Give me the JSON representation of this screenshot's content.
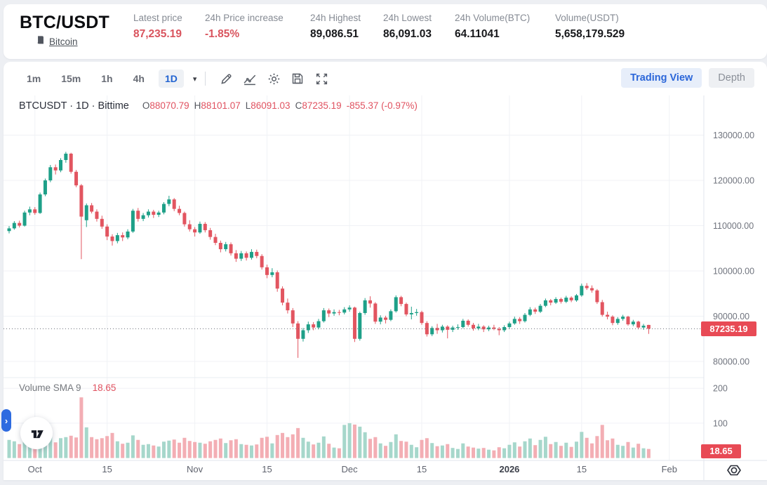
{
  "header": {
    "pair": "BTC/USDT",
    "pair_link": "Bitcoin",
    "stats": [
      {
        "label": "Latest price",
        "value": "87,235.19",
        "red": true
      },
      {
        "label": "24h Price increase",
        "value": "-1.85%",
        "red": true
      },
      {
        "label": "24h Highest",
        "value": "89,086.51",
        "red": false
      },
      {
        "label": "24h Lowest",
        "value": "86,091.03",
        "red": false
      },
      {
        "label": "24h Volume(BTC)",
        "value": "64.11041",
        "red": false
      },
      {
        "label": "Volume(USDT)",
        "value": "5,658,179.529",
        "red": false
      }
    ]
  },
  "toolbar": {
    "intervals": [
      "1m",
      "15m",
      "1h",
      "4h",
      "1D"
    ],
    "selected_interval": "1D",
    "caret": "▾",
    "icons": [
      "pencil",
      "line-chart",
      "gear",
      "save",
      "fullscreen"
    ],
    "tabs": {
      "trading_view": "Trading View",
      "depth": "Depth"
    },
    "selected_tab": "Trading View"
  },
  "chart_data": {
    "type": "candlestick",
    "symbol": "BTCUSDT",
    "interval": "1D",
    "exchange": "Bittime",
    "legend": {
      "title": "BTCUSDT · 1D · Bittime",
      "o_label": "O",
      "o": "88070.79",
      "h_label": "H",
      "h": "88101.07",
      "l_label": "L",
      "l": "86091.03",
      "c_label": "C",
      "c": "87235.19",
      "change": "-855.37 (-0.97%)"
    },
    "volume_legend": {
      "label": "Volume SMA 9",
      "value": "18.65"
    },
    "last_price": 87235.19,
    "last_price_label": "87235.19",
    "volume_sma": 18.65,
    "volume_sma_label": "18.65",
    "price_ticks": [
      {
        "label": "130000.00",
        "value": 130000
      },
      {
        "label": "120000.00",
        "value": 120000
      },
      {
        "label": "110000.00",
        "value": 110000
      },
      {
        "label": "100000.00",
        "value": 100000
      },
      {
        "label": "90000.00",
        "value": 90000
      },
      {
        "label": "80000.00",
        "value": 80000
      }
    ],
    "volume_ticks": [
      {
        "label": "200",
        "value": 200
      },
      {
        "label": "100",
        "value": 100
      }
    ],
    "time_ticks": [
      {
        "label": "Oct",
        "i": 5,
        "bold": false
      },
      {
        "label": "15",
        "i": 19,
        "bold": false
      },
      {
        "label": "Nov",
        "i": 36,
        "bold": false
      },
      {
        "label": "15",
        "i": 50,
        "bold": false
      },
      {
        "label": "Dec",
        "i": 66,
        "bold": false
      },
      {
        "label": "15",
        "i": 80,
        "bold": false
      },
      {
        "label": "2026",
        "i": 97,
        "bold": true
      },
      {
        "label": "15",
        "i": 111,
        "bold": false
      },
      {
        "label": "Feb",
        "i": 128,
        "bold": false
      }
    ],
    "colors": {
      "up": "#1ea088",
      "down": "#e25560",
      "vol_up": "#a6d7cb",
      "vol_down": "#f3aeb4",
      "label_bg": "#e84a55",
      "grid": "#f0f2f6",
      "axis_text": "#70747e"
    },
    "candles": [
      [
        108800,
        109900,
        108300,
        109400,
        52
      ],
      [
        109400,
        111000,
        109100,
        110600,
        48
      ],
      [
        110600,
        111100,
        109600,
        110000,
        40
      ],
      [
        110000,
        113300,
        109800,
        112900,
        55
      ],
      [
        112900,
        114200,
        112300,
        113600,
        50
      ],
      [
        113600,
        114100,
        112400,
        112800,
        42
      ],
      [
        112800,
        117300,
        112600,
        116900,
        58
      ],
      [
        116900,
        120400,
        116500,
        120000,
        62
      ],
      [
        120000,
        123400,
        119600,
        122900,
        66
      ],
      [
        122900,
        123500,
        121300,
        122200,
        45
      ],
      [
        122200,
        124900,
        121800,
        124500,
        57
      ],
      [
        124500,
        126300,
        123900,
        125900,
        60
      ],
      [
        125900,
        126100,
        121500,
        121900,
        64
      ],
      [
        121900,
        122300,
        118500,
        118900,
        59
      ],
      [
        118900,
        119200,
        102600,
        112000,
        174
      ],
      [
        111200,
        114900,
        109700,
        114500,
        88
      ],
      [
        114500,
        115000,
        112700,
        113100,
        60
      ],
      [
        113100,
        113600,
        110900,
        111500,
        54
      ],
      [
        111500,
        112200,
        109300,
        109800,
        57
      ],
      [
        109800,
        110300,
        106800,
        107600,
        63
      ],
      [
        107600,
        108100,
        105600,
        106600,
        72
      ],
      [
        106600,
        108400,
        106100,
        107900,
        48
      ],
      [
        107900,
        108500,
        106600,
        107400,
        41
      ],
      [
        107400,
        109200,
        107000,
        108700,
        44
      ],
      [
        108700,
        113700,
        108400,
        113300,
        65
      ],
      [
        113300,
        113900,
        110900,
        111500,
        52
      ],
      [
        111500,
        112800,
        111000,
        112300,
        38
      ],
      [
        112300,
        113600,
        111800,
        113100,
        40
      ],
      [
        113100,
        113500,
        111700,
        112400,
        36
      ],
      [
        112400,
        113300,
        111900,
        112900,
        33
      ],
      [
        112900,
        115200,
        112500,
        114800,
        47
      ],
      [
        114800,
        116600,
        114300,
        115800,
        50
      ],
      [
        115800,
        116100,
        113200,
        113700,
        53
      ],
      [
        113700,
        114400,
        112300,
        112800,
        44
      ],
      [
        112800,
        113100,
        109800,
        110300,
        58
      ],
      [
        110300,
        111200,
        108700,
        109200,
        49
      ],
      [
        109200,
        109700,
        107600,
        108500,
        46
      ],
      [
        108500,
        110900,
        108200,
        110400,
        44
      ],
      [
        110400,
        110800,
        108500,
        109000,
        41
      ],
      [
        109000,
        109500,
        106900,
        107500,
        48
      ],
      [
        107500,
        108200,
        105700,
        106200,
        52
      ],
      [
        106200,
        106700,
        104100,
        104800,
        56
      ],
      [
        104800,
        106400,
        104300,
        105900,
        43
      ],
      [
        105900,
        106300,
        103400,
        103900,
        51
      ],
      [
        103900,
        104600,
        102000,
        102700,
        54
      ],
      [
        102700,
        104400,
        102200,
        103900,
        40
      ],
      [
        103900,
        104300,
        102300,
        102900,
        38
      ],
      [
        102900,
        104800,
        102500,
        104200,
        36
      ],
      [
        104200,
        104700,
        102800,
        103300,
        39
      ],
      [
        103300,
        103700,
        100300,
        100800,
        58
      ],
      [
        100800,
        101400,
        98400,
        99100,
        61
      ],
      [
        99100,
        100600,
        98600,
        99700,
        42
      ],
      [
        99700,
        100100,
        95400,
        96100,
        66
      ],
      [
        96100,
        96600,
        92400,
        93000,
        72
      ],
      [
        93000,
        93900,
        90600,
        91300,
        60
      ],
      [
        91300,
        91800,
        87600,
        88400,
        68
      ],
      [
        88400,
        88900,
        80800,
        85000,
        86
      ],
      [
        85000,
        87400,
        84400,
        86900,
        58
      ],
      [
        86900,
        88800,
        86300,
        88200,
        47
      ],
      [
        88200,
        88700,
        86900,
        87500,
        39
      ],
      [
        87500,
        89400,
        87100,
        88900,
        44
      ],
      [
        88900,
        91800,
        88600,
        91300,
        62
      ],
      [
        91300,
        91700,
        89800,
        90600,
        41
      ],
      [
        90600,
        91500,
        90100,
        90900,
        30
      ],
      [
        90900,
        91400,
        90200,
        90800,
        28
      ],
      [
        90800,
        92000,
        90400,
        91500,
        95
      ],
      [
        91500,
        92400,
        91000,
        91900,
        100
      ],
      [
        91900,
        92100,
        84300,
        85000,
        96
      ],
      [
        85000,
        91000,
        84600,
        90700,
        90
      ],
      [
        90700,
        94000,
        90300,
        93500,
        74
      ],
      [
        93500,
        94400,
        91900,
        92800,
        55
      ],
      [
        92800,
        93100,
        88300,
        88800,
        60
      ],
      [
        88800,
        90200,
        88200,
        89700,
        42
      ],
      [
        89700,
        90100,
        88400,
        89200,
        35
      ],
      [
        89200,
        91500,
        88900,
        91100,
        46
      ],
      [
        91100,
        94600,
        90800,
        94200,
        68
      ],
      [
        94200,
        94500,
        92200,
        92700,
        49
      ],
      [
        92700,
        93000,
        90000,
        90400,
        47
      ],
      [
        90400,
        92100,
        89300,
        90700,
        38
      ],
      [
        90700,
        91600,
        90100,
        90900,
        31
      ],
      [
        90900,
        91200,
        88100,
        88500,
        52
      ],
      [
        88500,
        88900,
        85500,
        86000,
        57
      ],
      [
        86000,
        87800,
        85600,
        87400,
        43
      ],
      [
        87400,
        88300,
        86100,
        86900,
        34
      ],
      [
        86900,
        88100,
        86400,
        87700,
        36
      ],
      [
        87700,
        88000,
        85100,
        87000,
        40
      ],
      [
        87000,
        87900,
        86500,
        87500,
        29
      ],
      [
        87500,
        88200,
        87000,
        87600,
        26
      ],
      [
        87600,
        89400,
        87300,
        89000,
        42
      ],
      [
        89000,
        89300,
        87700,
        88100,
        33
      ],
      [
        88100,
        88500,
        86800,
        87300,
        30
      ],
      [
        87300,
        88300,
        86900,
        87700,
        27
      ],
      [
        87700,
        88000,
        86500,
        87100,
        29
      ],
      [
        87100,
        87900,
        86700,
        87500,
        24
      ],
      [
        87500,
        88100,
        86900,
        87200,
        22
      ],
      [
        87200,
        87600,
        85800,
        86900,
        31
      ],
      [
        86900,
        88000,
        86500,
        87600,
        28
      ],
      [
        87600,
        88800,
        87200,
        88400,
        38
      ],
      [
        88400,
        89900,
        88100,
        89400,
        45
      ],
      [
        89400,
        89800,
        88300,
        88900,
        33
      ],
      [
        88900,
        90700,
        88600,
        90300,
        48
      ],
      [
        90300,
        92000,
        90000,
        91500,
        56
      ],
      [
        91500,
        91900,
        90500,
        91000,
        37
      ],
      [
        91000,
        92700,
        90700,
        92300,
        52
      ],
      [
        92300,
        93900,
        92000,
        93500,
        61
      ],
      [
        93500,
        93800,
        92400,
        93000,
        40
      ],
      [
        93000,
        94200,
        92700,
        93800,
        46
      ],
      [
        93800,
        94100,
        92800,
        93200,
        35
      ],
      [
        93200,
        94500,
        92900,
        94100,
        44
      ],
      [
        94100,
        94400,
        93100,
        93500,
        32
      ],
      [
        93500,
        94900,
        93200,
        94600,
        47
      ],
      [
        94600,
        97200,
        94300,
        96700,
        75
      ],
      [
        96700,
        97300,
        95800,
        96200,
        58
      ],
      [
        96200,
        96800,
        95200,
        95700,
        42
      ],
      [
        95700,
        96000,
        92700,
        93100,
        63
      ],
      [
        93100,
        93600,
        89900,
        90300,
        95
      ],
      [
        90300,
        91000,
        89300,
        89900,
        51
      ],
      [
        89900,
        90200,
        88000,
        88500,
        56
      ],
      [
        88500,
        89800,
        88100,
        89400,
        38
      ],
      [
        89400,
        90300,
        89000,
        89900,
        35
      ],
      [
        89900,
        90100,
        87900,
        88200,
        46
      ],
      [
        88200,
        89200,
        87800,
        88800,
        30
      ],
      [
        88800,
        89000,
        87100,
        87500,
        41
      ],
      [
        87500,
        88300,
        87000,
        87900,
        28
      ],
      [
        88070.79,
        88101.07,
        86091.03,
        87235.19,
        26
      ]
    ]
  }
}
